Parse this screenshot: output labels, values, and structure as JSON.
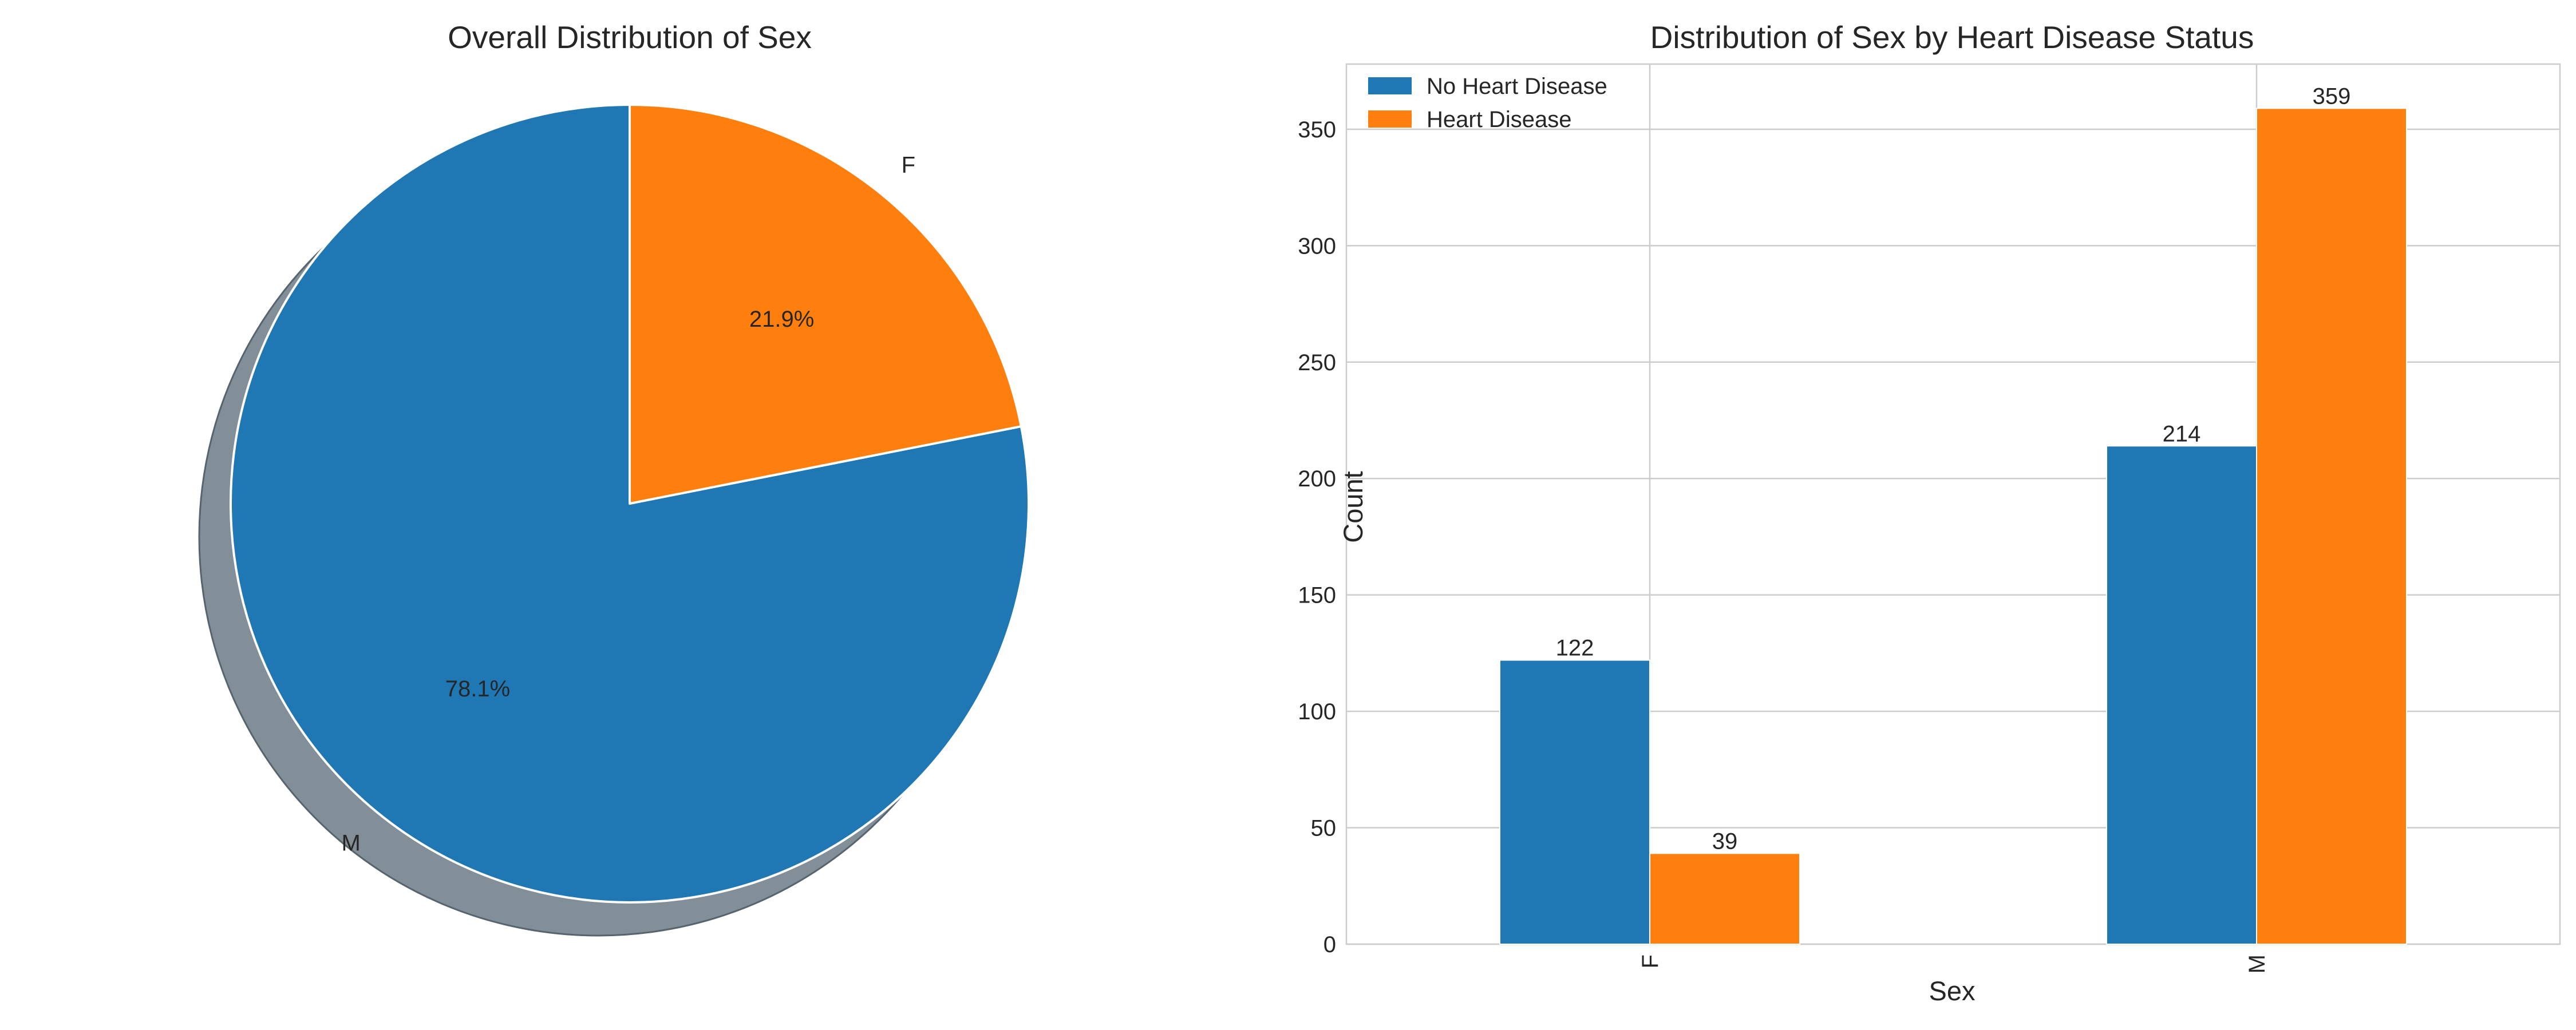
{
  "colors": {
    "series_0": "#1f77b4",
    "series_1": "#ff7f0e",
    "shadow": "#828f98",
    "grid": "#cccccc"
  },
  "chart_data": [
    {
      "type": "pie",
      "title": "Overall Distribution of Sex",
      "categories": [
        "M",
        "F"
      ],
      "values": [
        78.1,
        21.9
      ],
      "value_labels": [
        "78.1%",
        "21.9%"
      ],
      "start_angle_deg": 90,
      "shadow": true
    },
    {
      "type": "bar",
      "title": "Distribution of Sex by Heart Disease Status",
      "xlabel": "Sex",
      "ylabel": "Count",
      "categories": [
        "F",
        "M"
      ],
      "series": [
        {
          "name": "No Heart Disease",
          "values": [
            122,
            214
          ]
        },
        {
          "name": "Heart Disease",
          "values": [
            39,
            359
          ]
        }
      ],
      "ylim": [
        0,
        378
      ],
      "yticks": [
        0,
        50,
        100,
        150,
        200,
        250,
        300,
        350
      ],
      "grid": true,
      "legend_position": "top-left",
      "x_tick_rotation": "vertical"
    }
  ]
}
